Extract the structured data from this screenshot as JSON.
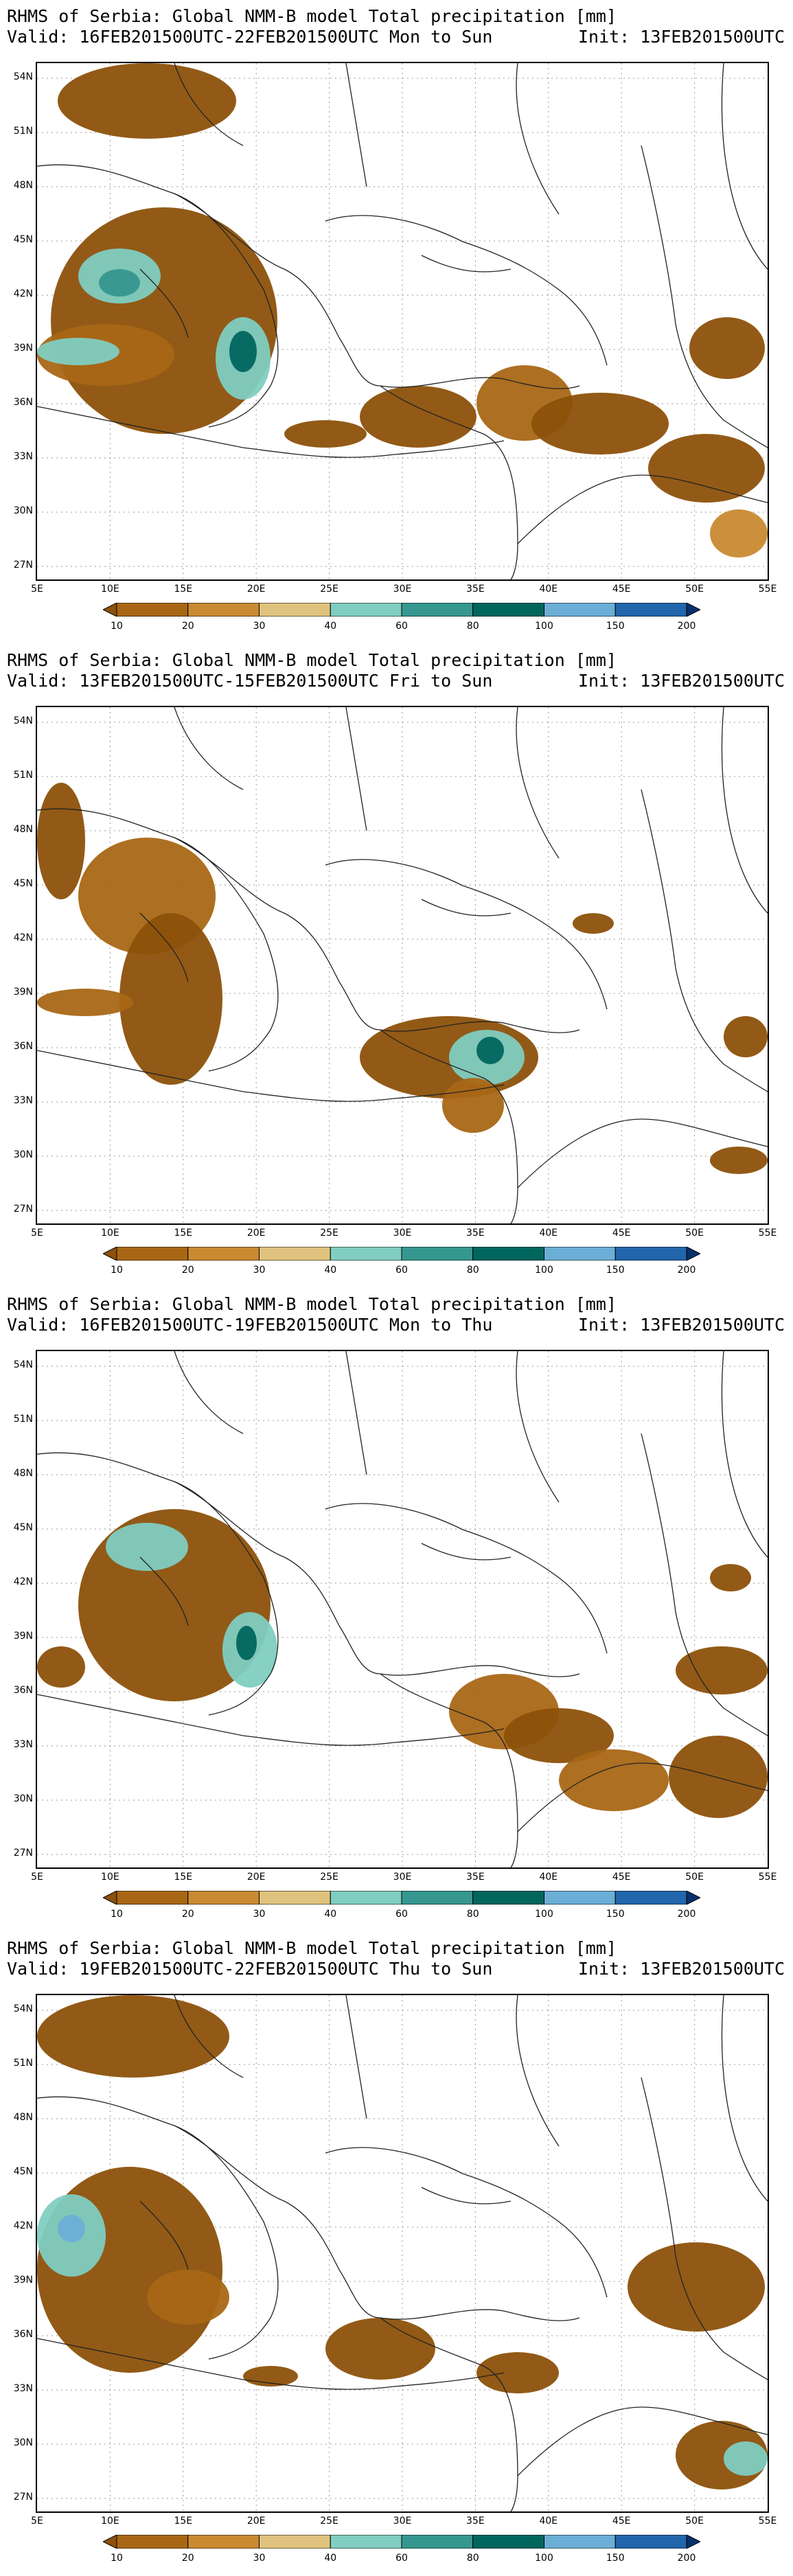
{
  "legend": {
    "levels": [
      "10",
      "20",
      "30",
      "40",
      "60",
      "80",
      "100",
      "150",
      "200"
    ],
    "colors": [
      "#8c510a",
      "#a96715",
      "#c98a32",
      "#dfc27d",
      "#80cdc1",
      "#35978f",
      "#01665e",
      "#6baed6",
      "#2166ac",
      "#08306b"
    ]
  },
  "axes": {
    "lat_labels": [
      "54N",
      "51N",
      "48N",
      "45N",
      "42N",
      "39N",
      "36N",
      "33N",
      "30N",
      "27N"
    ],
    "lon_labels": [
      "5E",
      "10E",
      "15E",
      "20E",
      "25E",
      "30E",
      "35E",
      "40E",
      "45E",
      "50E",
      "55E"
    ]
  },
  "panels": [
    {
      "title": "RHMS of Serbia: Global NMM-B model Total precipitation [mm]",
      "valid": "Valid: 16FEB201500UTC-22FEB201500UTC Mon to Sun",
      "init": "Init: 13FEB201500UTC"
    },
    {
      "title": "RHMS of Serbia: Global NMM-B model Total precipitation [mm]",
      "valid": "Valid: 13FEB201500UTC-15FEB201500UTC Fri to Sun",
      "init": "Init: 13FEB201500UTC"
    },
    {
      "title": "RHMS of Serbia: Global NMM-B model Total precipitation [mm]",
      "valid": "Valid: 16FEB201500UTC-19FEB201500UTC Mon to Thu",
      "init": "Init: 13FEB201500UTC"
    },
    {
      "title": "RHMS of Serbia: Global NMM-B model Total precipitation [mm]",
      "valid": "Valid: 19FEB201500UTC-22FEB201500UTC Thu to Sun",
      "init": "Init: 13FEB201500UTC"
    }
  ]
}
